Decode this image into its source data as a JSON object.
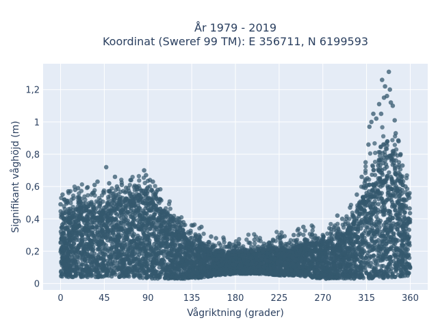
{
  "chart_data": {
    "type": "scatter",
    "title": "År 1979 - 2019",
    "subtitle": "Koordinat (Sweref 99 TM): E 356711, N 6199593",
    "xlabel": "Vågriktning (grader)",
    "ylabel": "Signifikant våghöjd (m)",
    "xlim": [
      -18,
      378
    ],
    "ylim": [
      -0.04,
      1.36
    ],
    "x_ticks": [
      0,
      45,
      90,
      135,
      180,
      225,
      270,
      315,
      360
    ],
    "y_ticks": [
      0,
      0.2,
      0.4,
      0.6,
      0.8,
      1,
      1.2
    ],
    "y_tick_labels": [
      "0",
      "0,2",
      "0,4",
      "0,6",
      "0,8",
      "1",
      "1,2"
    ],
    "grid": true,
    "colors": {
      "marker": "#34586e",
      "plot_bg": "#e5ecf6",
      "grid": "#ffffff"
    },
    "band": {
      "x": [
        0,
        15,
        30,
        45,
        60,
        75,
        90,
        105,
        120,
        135,
        150,
        165,
        180,
        195,
        210,
        225,
        240,
        255,
        270,
        285,
        300,
        315,
        330,
        345,
        360
      ],
      "y_low": [
        0.04,
        0.04,
        0.04,
        0.04,
        0.04,
        0.04,
        0.03,
        0.03,
        0.03,
        0.03,
        0.04,
        0.05,
        0.06,
        0.06,
        0.06,
        0.05,
        0.05,
        0.04,
        0.03,
        0.03,
        0.03,
        0.03,
        0.03,
        0.04,
        0.05
      ],
      "y_dense_top": [
        0.42,
        0.46,
        0.47,
        0.48,
        0.5,
        0.51,
        0.53,
        0.44,
        0.33,
        0.26,
        0.22,
        0.2,
        0.19,
        0.2,
        0.21,
        0.21,
        0.22,
        0.24,
        0.25,
        0.28,
        0.35,
        0.6,
        0.8,
        0.75,
        0.46
      ]
    },
    "outliers": [
      {
        "x": 2,
        "y": 0.55
      },
      {
        "x": 4,
        "y": 0.52
      },
      {
        "x": 15,
        "y": 0.58
      },
      {
        "x": 18,
        "y": 0.59
      },
      {
        "x": 33,
        "y": 0.56
      },
      {
        "x": 35,
        "y": 0.61
      },
      {
        "x": 38,
        "y": 0.63
      },
      {
        "x": 47,
        "y": 0.72
      },
      {
        "x": 50,
        "y": 0.62
      },
      {
        "x": 56,
        "y": 0.66
      },
      {
        "x": 58,
        "y": 0.6
      },
      {
        "x": 63,
        "y": 0.61
      },
      {
        "x": 72,
        "y": 0.64
      },
      {
        "x": 78,
        "y": 0.6
      },
      {
        "x": 86,
        "y": 0.7
      },
      {
        "x": 88,
        "y": 0.67
      },
      {
        "x": 92,
        "y": 0.64
      },
      {
        "x": 95,
        "y": 0.63
      },
      {
        "x": 100,
        "y": 0.58
      },
      {
        "x": 110,
        "y": 0.43
      },
      {
        "x": 122,
        "y": 0.4
      },
      {
        "x": 135,
        "y": 0.36
      },
      {
        "x": 145,
        "y": 0.35
      },
      {
        "x": 155,
        "y": 0.29
      },
      {
        "x": 160,
        "y": 0.28
      },
      {
        "x": 178,
        "y": 0.24
      },
      {
        "x": 195,
        "y": 0.25
      },
      {
        "x": 215,
        "y": 0.25
      },
      {
        "x": 228,
        "y": 0.29
      },
      {
        "x": 240,
        "y": 0.3
      },
      {
        "x": 250,
        "y": 0.35
      },
      {
        "x": 262,
        "y": 0.28
      },
      {
        "x": 270,
        "y": 0.3
      },
      {
        "x": 285,
        "y": 0.42
      },
      {
        "x": 290,
        "y": 0.4
      },
      {
        "x": 298,
        "y": 0.47
      },
      {
        "x": 305,
        "y": 0.55
      },
      {
        "x": 310,
        "y": 0.66
      },
      {
        "x": 314,
        "y": 0.75
      },
      {
        "x": 317,
        "y": 0.86
      },
      {
        "x": 318,
        "y": 0.97
      },
      {
        "x": 320,
        "y": 1
      },
      {
        "x": 322,
        "y": 1.05
      },
      {
        "x": 325,
        "y": 1.02
      },
      {
        "x": 328,
        "y": 1.11
      },
      {
        "x": 330,
        "y": 1.05
      },
      {
        "x": 331,
        "y": 1.26
      },
      {
        "x": 333,
        "y": 1.15
      },
      {
        "x": 334,
        "y": 1.22
      },
      {
        "x": 336,
        "y": 1.16
      },
      {
        "x": 338,
        "y": 1.31
      },
      {
        "x": 339,
        "y": 1.2
      },
      {
        "x": 340,
        "y": 1.12
      },
      {
        "x": 342,
        "y": 1.1
      },
      {
        "x": 344,
        "y": 1.01
      },
      {
        "x": 345,
        "y": 0.93
      },
      {
        "x": 348,
        "y": 0.88
      },
      {
        "x": 350,
        "y": 0.8
      },
      {
        "x": 352,
        "y": 0.73
      },
      {
        "x": 355,
        "y": 0.6
      },
      {
        "x": 357,
        "y": 0.55
      },
      {
        "x": 359,
        "y": 0.53
      },
      {
        "x": 0,
        "y": 0.49
      },
      {
        "x": 8,
        "y": 0.57
      }
    ]
  }
}
